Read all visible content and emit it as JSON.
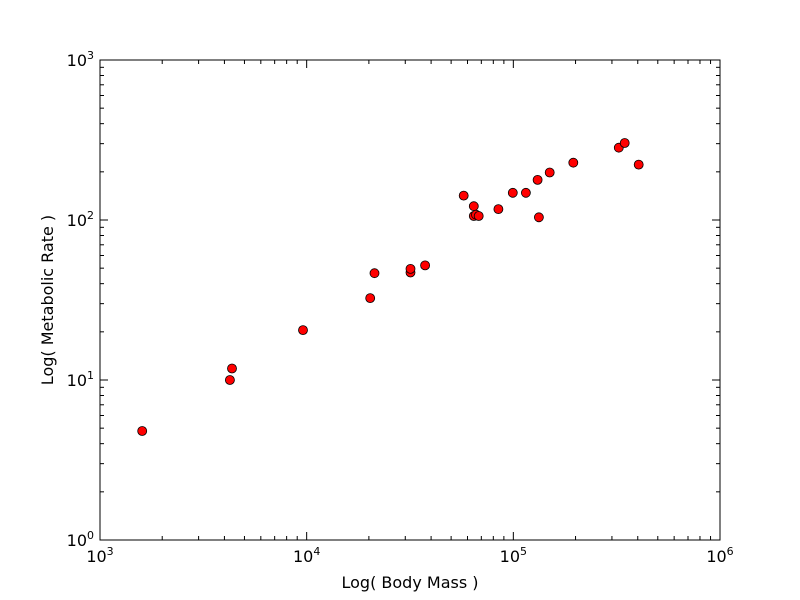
{
  "chart_data": {
    "type": "scatter",
    "xlabel": "Log( Body Mass )",
    "ylabel": "Log( Metabolic Rate )",
    "x_scale": "log",
    "y_scale": "log",
    "xlim": [
      1000,
      1000000
    ],
    "ylim": [
      1,
      1000
    ],
    "x_ticks": [
      {
        "base": "10",
        "exp": "3",
        "value": 1000
      },
      {
        "base": "10",
        "exp": "4",
        "value": 10000
      },
      {
        "base": "10",
        "exp": "5",
        "value": 100000
      },
      {
        "base": "10",
        "exp": "6",
        "value": 1000000
      }
    ],
    "y_ticks": [
      {
        "base": "10",
        "exp": "0",
        "value": 1
      },
      {
        "base": "10",
        "exp": "1",
        "value": 10
      },
      {
        "base": "10",
        "exp": "2",
        "value": 100
      },
      {
        "base": "10",
        "exp": "3",
        "value": 1000
      }
    ],
    "marker_color": "#ff0000",
    "marker_edge": "#000000",
    "grid": false,
    "points": [
      {
        "x": 1600,
        "y": 4.8
      },
      {
        "x": 4250,
        "y": 10
      },
      {
        "x": 4350,
        "y": 11.8
      },
      {
        "x": 9600,
        "y": 20.5
      },
      {
        "x": 20300,
        "y": 32.5
      },
      {
        "x": 21300,
        "y": 46.5
      },
      {
        "x": 31800,
        "y": 47
      },
      {
        "x": 31800,
        "y": 49.5
      },
      {
        "x": 37400,
        "y": 52
      },
      {
        "x": 57500,
        "y": 142
      },
      {
        "x": 64400,
        "y": 122
      },
      {
        "x": 64400,
        "y": 106
      },
      {
        "x": 66000,
        "y": 108
      },
      {
        "x": 68000,
        "y": 106
      },
      {
        "x": 84700,
        "y": 117
      },
      {
        "x": 99400,
        "y": 148
      },
      {
        "x": 115000,
        "y": 148
      },
      {
        "x": 131000,
        "y": 178
      },
      {
        "x": 133000,
        "y": 104
      },
      {
        "x": 150000,
        "y": 198
      },
      {
        "x": 195000,
        "y": 228
      },
      {
        "x": 324000,
        "y": 283
      },
      {
        "x": 346000,
        "y": 303
      },
      {
        "x": 404000,
        "y": 222
      }
    ]
  }
}
